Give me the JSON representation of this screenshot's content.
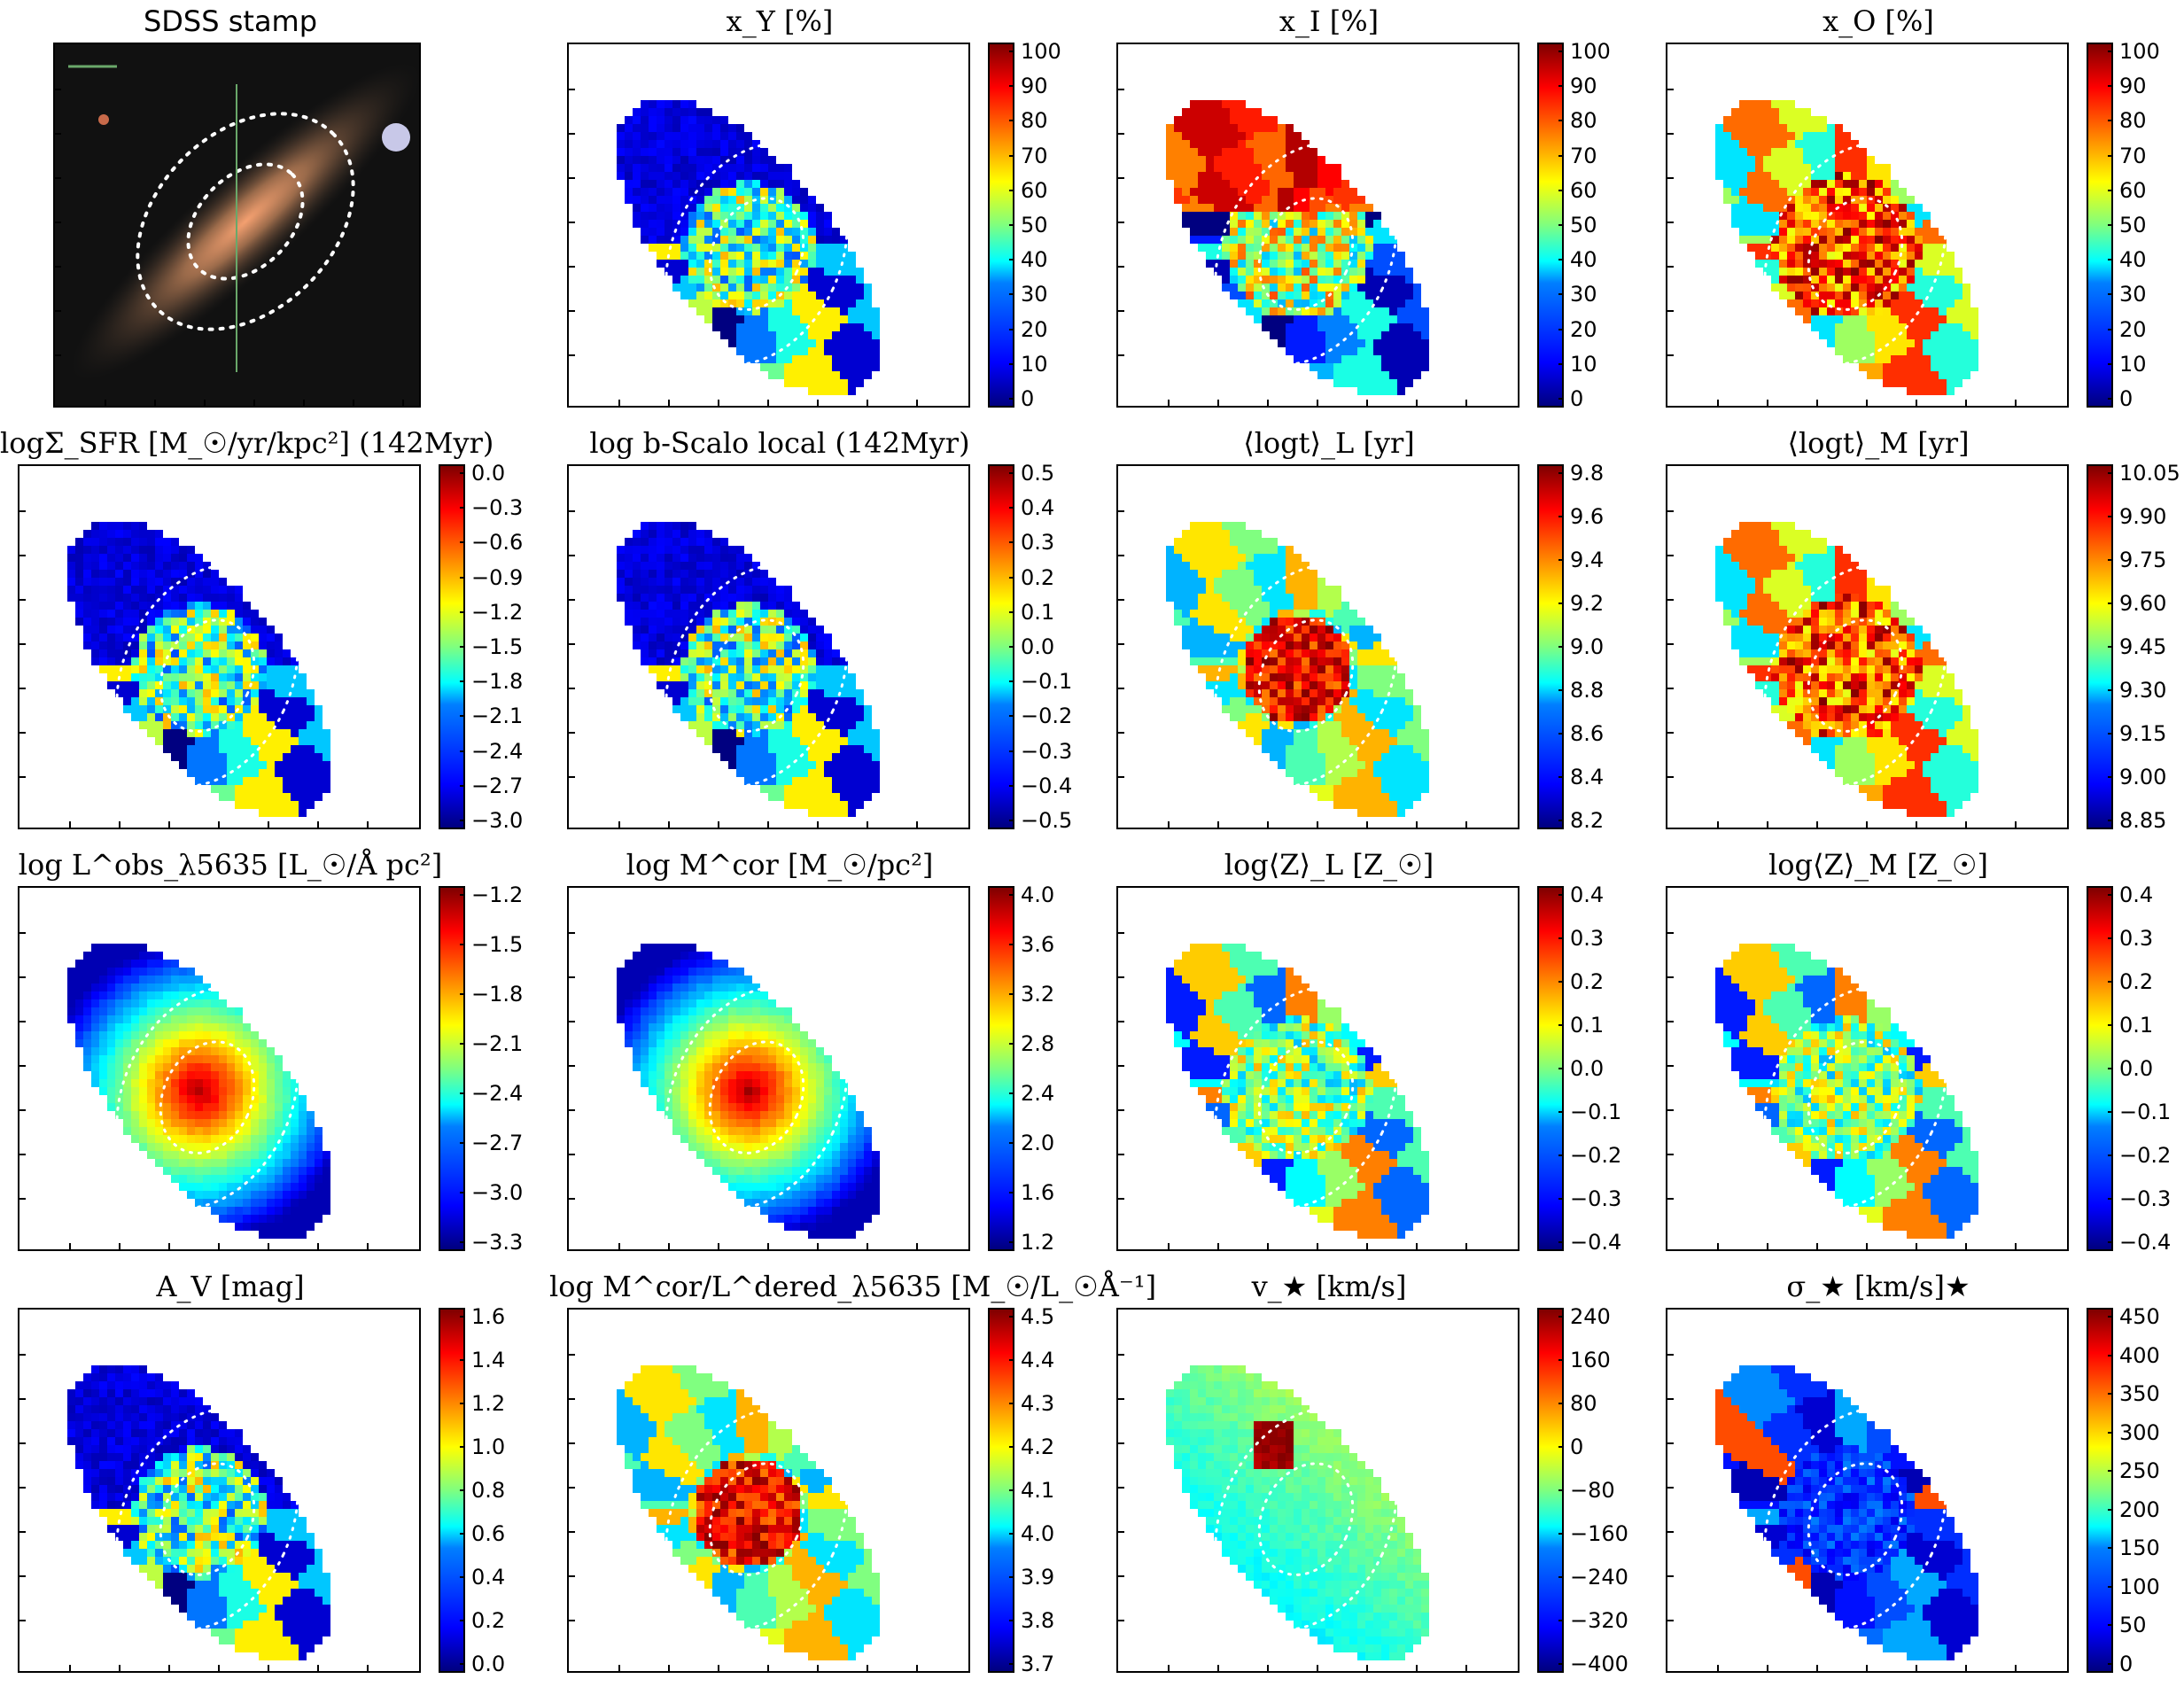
{
  "panels": [
    {
      "id": "sdss-stamp",
      "title": "SDSS stamp",
      "kind": "stamp",
      "ticks": []
    },
    {
      "id": "xy",
      "title": "x_Y [%]",
      "kind": "map",
      "seed": 1,
      "pattern": "young",
      "ticks": [
        "100",
        "90",
        "80",
        "70",
        "60",
        "50",
        "40",
        "30",
        "20",
        "10",
        "0"
      ]
    },
    {
      "id": "xi",
      "title": "x_I [%]",
      "kind": "map",
      "seed": 2,
      "pattern": "inter",
      "ticks": [
        "100",
        "90",
        "80",
        "70",
        "60",
        "50",
        "40",
        "30",
        "20",
        "10",
        "0"
      ]
    },
    {
      "id": "xo",
      "title": "x_O [%]",
      "kind": "map",
      "seed": 3,
      "pattern": "old",
      "ticks": [
        "100",
        "90",
        "80",
        "70",
        "60",
        "50",
        "40",
        "30",
        "20",
        "10",
        "0"
      ]
    },
    {
      "id": "sfr",
      "title": "logΣ_SFR [M_☉/yr/kpc²] (142Myr)",
      "kind": "map",
      "seed": 4,
      "pattern": "young",
      "ticks": [
        "0.0",
        "−0.3",
        "−0.6",
        "−0.9",
        "−1.2",
        "−1.5",
        "−1.8",
        "−2.1",
        "−2.4",
        "−2.7",
        "−3.0"
      ]
    },
    {
      "id": "bscalo",
      "title": "log b-Scalo local (142Myr)",
      "kind": "map",
      "seed": 5,
      "pattern": "young",
      "ticks": [
        "0.5",
        "0.4",
        "0.3",
        "0.2",
        "0.1",
        "0.0",
        "−0.1",
        "−0.2",
        "−0.3",
        "−0.4",
        "−0.5"
      ]
    },
    {
      "id": "logt-l",
      "title": "⟨logt⟩_L [yr]",
      "kind": "map",
      "seed": 6,
      "pattern": "centerhot",
      "ticks": [
        "9.8",
        "9.6",
        "9.4",
        "9.2",
        "9.0",
        "8.8",
        "8.6",
        "8.4",
        "8.2"
      ]
    },
    {
      "id": "logt-m",
      "title": "⟨logt⟩_M [yr]",
      "kind": "map",
      "seed": 7,
      "pattern": "old",
      "ticks": [
        "10.05",
        "9.90",
        "9.75",
        "9.60",
        "9.45",
        "9.30",
        "9.15",
        "9.00",
        "8.85"
      ]
    },
    {
      "id": "lum",
      "title": "log L^obs_λ5635 [L_☉/Å pc²]",
      "kind": "map",
      "seed": 8,
      "pattern": "smooth",
      "ticks": [
        "−1.2",
        "−1.5",
        "−1.8",
        "−2.1",
        "−2.4",
        "−2.7",
        "−3.0",
        "−3.3"
      ]
    },
    {
      "id": "mass",
      "title": "log M^cor [M_☉/pc²]",
      "kind": "map",
      "seed": 9,
      "pattern": "smooth",
      "ticks": [
        "4.0",
        "3.6",
        "3.2",
        "2.8",
        "2.4",
        "2.0",
        "1.6",
        "1.2"
      ]
    },
    {
      "id": "z-l",
      "title": "log⟨Z⟩_L [Z_☉]",
      "kind": "map",
      "seed": 10,
      "pattern": "mixed",
      "ticks": [
        "0.4",
        "0.3",
        "0.2",
        "0.1",
        "0.0",
        "−0.1",
        "−0.2",
        "−0.3",
        "−0.4"
      ]
    },
    {
      "id": "z-m",
      "title": "log⟨Z⟩_M [Z_☉]",
      "kind": "map",
      "seed": 11,
      "pattern": "mixed",
      "ticks": [
        "0.4",
        "0.3",
        "0.2",
        "0.1",
        "0.0",
        "−0.1",
        "−0.2",
        "−0.3",
        "−0.4"
      ]
    },
    {
      "id": "av",
      "title": "A_V [mag]",
      "kind": "map",
      "seed": 12,
      "pattern": "young",
      "ticks": [
        "1.6",
        "1.4",
        "1.2",
        "1.0",
        "0.8",
        "0.6",
        "0.4",
        "0.2",
        "0.0"
      ]
    },
    {
      "id": "ml",
      "title": "log M^cor/L^dered_λ5635 [M_☉/L_☉Å⁻¹]",
      "kind": "map",
      "seed": 13,
      "pattern": "centerhot",
      "ticks": [
        "4.5",
        "4.4",
        "4.3",
        "4.2",
        "4.1",
        "4.0",
        "3.9",
        "3.8",
        "3.7"
      ]
    },
    {
      "id": "vel",
      "title": "v_★ [km/s]",
      "kind": "map",
      "seed": 14,
      "pattern": "vel",
      "ticks": [
        "240",
        "160",
        "80",
        "0",
        "−80",
        "−160",
        "−240",
        "−320",
        "−400"
      ]
    },
    {
      "id": "sigma",
      "title": "σ_★ [km/s]★",
      "kind": "map",
      "seed": 15,
      "pattern": "sigma",
      "ticks": [
        "450",
        "400",
        "350",
        "300",
        "250",
        "200",
        "150",
        "100",
        "50",
        "0"
      ]
    }
  ]
}
